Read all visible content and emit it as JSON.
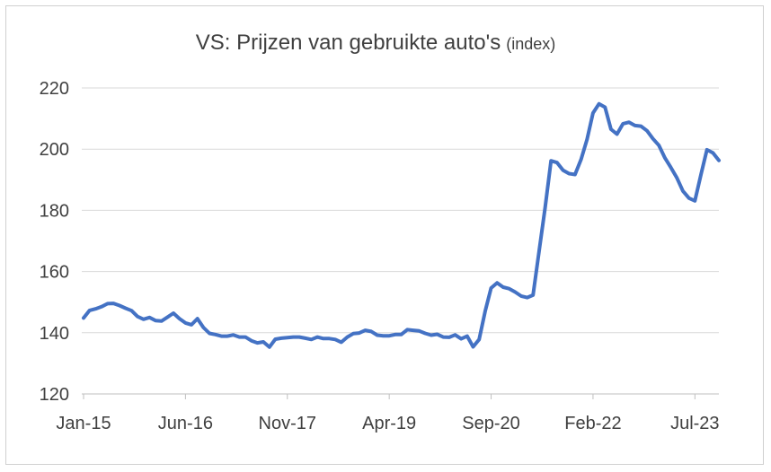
{
  "chart_data": {
    "type": "line",
    "title": "VS: Prijzen van gebruikte auto's",
    "subtitle": "(index)",
    "xlabel": "",
    "ylabel": "",
    "ylim": [
      120,
      220
    ],
    "yticks": [
      120,
      140,
      160,
      180,
      200,
      220
    ],
    "xticks": [
      "Jan-15",
      "Jun-16",
      "Nov-17",
      "Apr-19",
      "Sep-20",
      "Feb-22",
      "Jul-23"
    ],
    "grid": true,
    "legend": "none",
    "color": "#4472C4",
    "series": [
      {
        "values": [
          144.8,
          147.3,
          147.8,
          148.5,
          149.5,
          149.6,
          148.9,
          148.0,
          147.2,
          145.3,
          144.4,
          145.0,
          144.0,
          143.8,
          145.1,
          146.4,
          144.6,
          143.2,
          142.6,
          144.6,
          141.7,
          139.8,
          139.4,
          138.9,
          138.9,
          139.3,
          138.6,
          138.6,
          137.4,
          136.7,
          137.0,
          135.3,
          137.9,
          138.2,
          138.4,
          138.6,
          138.6,
          138.2,
          137.8,
          138.6,
          138.1,
          138.1,
          137.8,
          136.9,
          138.6,
          139.7,
          139.9,
          140.8,
          140.4,
          139.2,
          139.0,
          139.0,
          139.4,
          139.4,
          141.0,
          140.8,
          140.6,
          139.8,
          139.2,
          139.5,
          138.6,
          138.5,
          139.3,
          138.0,
          138.9,
          135.4,
          137.8,
          147.0,
          154.6,
          156.3,
          154.9,
          154.4,
          153.3,
          152.0,
          151.5,
          152.3,
          166.6,
          180.8,
          196.2,
          195.6,
          193.1,
          192.0,
          191.7,
          196.6,
          203.2,
          211.8,
          214.8,
          213.7,
          206.5,
          204.9,
          208.3,
          208.8,
          207.7,
          207.5,
          206.0,
          203.4,
          201.2,
          197.1,
          194.0,
          190.6,
          186.3,
          184.0,
          183.1,
          191.6,
          199.8,
          198.8,
          196.3
        ]
      }
    ]
  }
}
